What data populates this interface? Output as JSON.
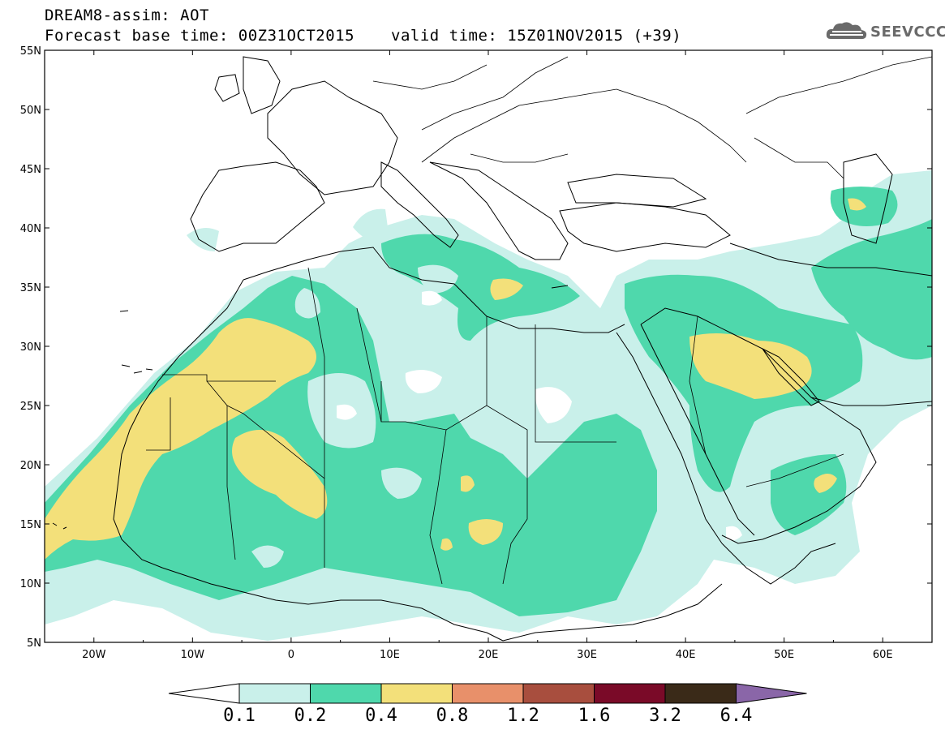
{
  "header": {
    "title_line1": "DREAM8-assim: AOT",
    "title_line2": "Forecast base time: 00Z31OCT2015",
    "valid_time": "valid time: 15Z01NOV2015 (+39)",
    "logo_text": "SEEVCCC",
    "logo_icon": "cloud-logo-icon"
  },
  "map": {
    "lon_range": [
      -25,
      65
    ],
    "lat_range": [
      5,
      55
    ],
    "lat_labels": [
      "55N",
      "50N",
      "45N",
      "40N",
      "35N",
      "30N",
      "25N",
      "20N",
      "15N",
      "10N",
      "5N"
    ],
    "lon_labels": [
      "20W",
      "10W",
      "0",
      "10E",
      "20E",
      "30E",
      "40E",
      "50E",
      "60E"
    ],
    "ocean_color": "#ffffff",
    "coastline_color": "#000000"
  },
  "colorbar": {
    "labels": [
      "0.1",
      "0.2",
      "0.4",
      "0.8",
      "1.2",
      "1.6",
      "3.2",
      "6.4"
    ],
    "colors": [
      "#ffffff",
      "#c9f0ea",
      "#4fd8ac",
      "#f3e07a",
      "#e8906a",
      "#a84e3e",
      "#7a0a28",
      "#3a2a18",
      "#8a66a8"
    ]
  }
}
